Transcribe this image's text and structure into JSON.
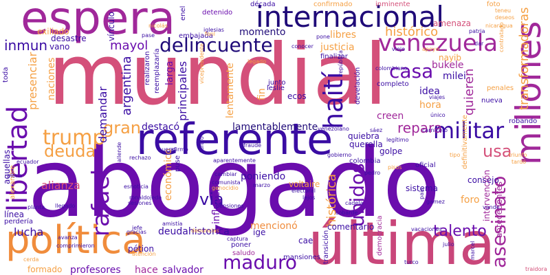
{
  "palette": {
    "dark_purple": "#3a0ca3",
    "navy": "#1f0a78",
    "purple": "#6a0dad",
    "magenta": "#a0289a",
    "pink": "#d4507a",
    "rose": "#c9467a",
    "orange": "#f08c3c",
    "light_orange": "#f5a044",
    "yellow": "#f5c542"
  },
  "words": [
    {
      "text": "mundial",
      "color": "#d4507a"
    },
    {
      "text": "abogado",
      "color": "#6a0dad"
    },
    {
      "text": "referente",
      "color": "#3a0ca3"
    },
    {
      "text": "espera",
      "color": "#a0289a"
    },
    {
      "text": "última",
      "color": "#c9467a"
    },
    {
      "text": "política",
      "color": "#f08c3c"
    },
    {
      "text": "internacional",
      "color": "#1f0a78"
    },
    {
      "text": "venezuela",
      "color": "#a0289a"
    },
    {
      "text": "millones",
      "color": "#a0289a"
    },
    {
      "text": "libertad",
      "color": "#6a0dad"
    },
    {
      "text": "haití",
      "color": "#3a0ca3"
    },
    {
      "text": "militar",
      "color": "#3a0ca3"
    },
    {
      "text": "trump",
      "color": "#f5a044"
    },
    {
      "text": "rafael",
      "color": "#6a0dad"
    },
    {
      "text": "delincuente",
      "color": "#1f0a78"
    },
    {
      "text": "casa",
      "color": "#6a0dad"
    },
    {
      "text": "maduro",
      "color": "#6a0dad"
    },
    {
      "text": "asesinato",
      "color": "#a0289a"
    },
    {
      "text": "unidos",
      "color": "#6a0dad"
    },
    {
      "text": "deuda",
      "color": "#f5a044"
    },
    {
      "text": "usa",
      "color": "#d4507a"
    },
    {
      "text": "gran",
      "color": "#f5a044"
    },
    {
      "text": "via",
      "color": "#3a0ca3"
    },
    {
      "text": "talento",
      "color": "#6a0dad"
    },
    {
      "text": "histórico",
      "color": "#f5a044"
    },
    {
      "text": "histórica",
      "color": "#f5a044"
    },
    {
      "text": "transformadoras",
      "color": "#f5a044"
    },
    {
      "text": "mayol",
      "color": "#6a0dad"
    },
    {
      "text": "inmun",
      "color": "#3a0ca3"
    },
    {
      "text": "lamentablemente",
      "color": "#1f0a78"
    },
    {
      "text": "repara",
      "color": "#a0289a"
    },
    {
      "text": "quieren",
      "color": "#a0289a"
    },
    {
      "text": "alianza",
      "color": "#d4507a"
    },
    {
      "text": "demandar",
      "color": "#3a0ca3"
    },
    {
      "text": "argentina",
      "color": "#3a0ca3"
    },
    {
      "text": "principales",
      "color": "#3a0ca3"
    },
    {
      "text": "presenciar",
      "color": "#f5a044"
    },
    {
      "text": "lucha",
      "color": "#3a0ca3"
    },
    {
      "text": "salvador",
      "color": "#6a0dad"
    },
    {
      "text": "profesores",
      "color": "#6a0dad"
    },
    {
      "text": "formado",
      "color": "#f5a044"
    },
    {
      "text": "hace",
      "color": "#a0289a"
    },
    {
      "text": "deudahistorica",
      "color": "#3a0ca3"
    },
    {
      "text": "mencionó",
      "color": "#f08c3c"
    },
    {
      "text": "influyente",
      "color": "#6a0dad"
    },
    {
      "text": "económico",
      "color": "#f5a044"
    },
    {
      "text": "poniendo",
      "color": "#3a0ca3"
    },
    {
      "text": "destacó",
      "color": "#3a0ca3"
    },
    {
      "text": "justicia",
      "color": "#f5a044"
    },
    {
      "text": "libres",
      "color": "#f5a044"
    },
    {
      "text": "momento",
      "color": "#1f0a78"
    },
    {
      "text": "nayib",
      "color": "#f5a044"
    },
    {
      "text": "bukele",
      "color": "#a0289a"
    },
    {
      "text": "milei",
      "color": "#3a0ca3"
    },
    {
      "text": "idea",
      "color": "#3a0ca3"
    },
    {
      "text": "hora",
      "color": "#f5a044"
    },
    {
      "text": "fin",
      "color": "#f5a044"
    },
    {
      "text": "larga",
      "color": "#6a0dad"
    },
    {
      "text": "foro",
      "color": "#f5a044"
    },
    {
      "text": "creen",
      "color": "#a0289a"
    },
    {
      "text": "quiebra",
      "color": "#3a0ca3"
    },
    {
      "text": "querella",
      "color": "#3a0ca3"
    },
    {
      "text": "golpe",
      "color": "#3a0ca3"
    },
    {
      "text": "colombia",
      "color": "#3a0ca3"
    },
    {
      "text": "consejo",
      "color": "#3a0ca3"
    },
    {
      "text": "sistema",
      "color": "#3a0ca3"
    },
    {
      "text": "comentario",
      "color": "#3a0ca3"
    },
    {
      "text": "lentamente",
      "color": "#f5a044"
    },
    {
      "text": "vano",
      "color": "#3a0ca3"
    },
    {
      "text": "desastre",
      "color": "#3a0ca3"
    },
    {
      "text": "exiliado",
      "color": "#f5a044"
    },
    {
      "text": "vínculo",
      "color": "#3a0ca3"
    },
    {
      "text": "enel",
      "color": "#3a0ca3"
    },
    {
      "text": "detenido",
      "color": "#6a0dad"
    },
    {
      "text": "confirmado",
      "color": "#f5a044"
    },
    {
      "text": "década",
      "color": "#3a0ca3"
    },
    {
      "text": "inminente",
      "color": "#d4507a"
    },
    {
      "text": "amenaza",
      "color": "#d4507a"
    },
    {
      "text": "foto",
      "color": "#f5a044"
    },
    {
      "text": "cae",
      "color": "#3a0ca3"
    },
    {
      "text": "ige",
      "color": "#3a0ca3"
    },
    {
      "text": "saludo",
      "color": "#a0289a"
    },
    {
      "text": "mansiones",
      "color": "#3a0ca3"
    },
    {
      "text": "poner",
      "color": "#3a0ca3"
    },
    {
      "text": "transición",
      "color": "#3a0ca3"
    },
    {
      "text": "democracia",
      "color": "#a0289a"
    },
    {
      "text": "intervención",
      "color": "#a0289a"
    },
    {
      "text": "antecedentes",
      "color": "#a0289a"
    },
    {
      "text": "definitivamente",
      "color": "#f5a044"
    },
    {
      "text": "oficial",
      "color": "#3a0ca3"
    },
    {
      "text": "robando",
      "color": "#3a0ca3"
    },
    {
      "text": "nueva",
      "color": "#3a0ca3"
    },
    {
      "text": "completo",
      "color": "#3a0ca3"
    },
    {
      "text": "develación",
      "color": "#3a0ca3"
    },
    {
      "text": "ecos",
      "color": "#3a0ca3"
    },
    {
      "text": "junto",
      "color": "#3a0ca3"
    },
    {
      "text": "leslie",
      "color": "#3a0ca3"
    },
    {
      "text": "reemplazaría",
      "color": "#3a0ca3"
    },
    {
      "text": "realizaron",
      "color": "#3a0ca3"
    },
    {
      "text": "línea",
      "color": "#3a0ca3"
    },
    {
      "text": "perdería",
      "color": "#3a0ca3"
    },
    {
      "text": "aquellas",
      "color": "#3a0ca3"
    },
    {
      "text": "alexandre",
      "color": "#f5a044"
    },
    {
      "text": "toda",
      "color": "#3a0ca3"
    },
    {
      "text": "naciones",
      "color": "#f5a044"
    },
    {
      "text": "pétion",
      "color": "#3a0ca3"
    },
    {
      "text": "atención",
      "color": "#f5a044"
    },
    {
      "text": "gracias",
      "color": "#3a0ca3"
    },
    {
      "text": "pone",
      "color": "#3a0ca3"
    },
    {
      "text": "voltaire",
      "color": "#f5a044"
    },
    {
      "text": "finalizar",
      "color": "#3a0ca3"
    },
    {
      "text": "penales",
      "color": "#f5a044"
    },
    {
      "text": "embajada",
      "color": "#3a0ca3"
    },
    {
      "text": "iglesias",
      "color": "#3a0ca3"
    },
    {
      "text": "pase",
      "color": "#3a0ca3"
    },
    {
      "text": "nicolás",
      "color": "#f5a044"
    },
    {
      "text": "fonl",
      "color": "#f5a044"
    },
    {
      "text": "patria",
      "color": "#3a0ca3"
    },
    {
      "text": "conocer",
      "color": "#3a0ca3"
    },
    {
      "text": "dar",
      "color": "#3a0ca3"
    },
    {
      "text": "apoyo",
      "color": "#f5a044"
    },
    {
      "text": "viajes",
      "color": "#3a0ca3"
    },
    {
      "text": "único",
      "color": "#3a0ca3"
    },
    {
      "text": "teneu",
      "color": "#f5a044"
    },
    {
      "text": "deseos",
      "color": "#f5a044"
    },
    {
      "text": "nicaragua",
      "color": "#f5a044"
    },
    {
      "text": "contratado",
      "color": "#f5a044"
    },
    {
      "text": "legado",
      "color": "#f5a044"
    },
    {
      "text": "colombiano",
      "color": "#3a0ca3"
    },
    {
      "text": "república",
      "color": "#3a0ca3"
    },
    {
      "text": "venezolano",
      "color": "#3a0ca3"
    },
    {
      "text": "sáez",
      "color": "#3a0ca3"
    },
    {
      "text": "legítimo",
      "color": "#3a0ca3"
    },
    {
      "text": "vicepresidente",
      "color": "#f5a044"
    },
    {
      "text": "carnicero",
      "color": "#3a0ca3"
    },
    {
      "text": "fraude",
      "color": "#3a0ca3"
    },
    {
      "text": "afirmó",
      "color": "#3a0ca3"
    },
    {
      "text": "bueno",
      "color": "#3a0ca3"
    },
    {
      "text": "turbio",
      "color": "#3a0ca3"
    },
    {
      "text": "aparentemente",
      "color": "#3a0ca3"
    },
    {
      "text": "rechazo",
      "color": "#3a0ca3"
    },
    {
      "text": "comunista",
      "color": "#3a0ca3"
    },
    {
      "text": "cambiar",
      "color": "#3a0ca3"
    },
    {
      "text": "genocidio",
      "color": "#f5a044"
    },
    {
      "text": "pensiones",
      "color": "#3a0ca3"
    },
    {
      "text": "sesiones",
      "color": "#3a0ca3"
    },
    {
      "text": "ronaldojeda",
      "color": "#3a0ca3"
    },
    {
      "text": "esnoticia",
      "color": "#3a0ca3"
    },
    {
      "text": "llegado",
      "color": "#3a0ca3"
    },
    {
      "text": "marzo",
      "color": "#3a0ca3"
    },
    {
      "text": "electoral",
      "color": "#3a0ca3"
    },
    {
      "text": "lejos",
      "color": "#3a0ca3"
    },
    {
      "text": "gamez",
      "color": "#3a0ca3"
    },
    {
      "text": "cadela",
      "color": "#3a0ca3"
    },
    {
      "text": "cobarde",
      "color": "#3a0ca3"
    },
    {
      "text": "vacaciones",
      "color": "#3a0ca3"
    },
    {
      "text": "julio",
      "color": "#3a0ca3"
    },
    {
      "text": "turco",
      "color": "#3a0ca3"
    },
    {
      "text": "marcel",
      "color": "#3a0ca3"
    },
    {
      "text": "traidora",
      "color": "#d4507a"
    },
    {
      "text": "jefe",
      "color": "#3a0ca3"
    },
    {
      "text": "amistía",
      "color": "#3a0ca3"
    },
    {
      "text": "captura",
      "color": "#3a0ca3"
    },
    {
      "text": "comprimieron",
      "color": "#3a0ca3"
    },
    {
      "text": "avanza",
      "color": "#3a0ca3"
    },
    {
      "text": "denuncias",
      "color": "#f5a044"
    },
    {
      "text": "puse",
      "color": "#3a0ca3"
    },
    {
      "text": "allende",
      "color": "#3a0ca3"
    },
    {
      "text": "plena",
      "color": "#3a0ca3"
    },
    {
      "text": "planta",
      "color": "#3a0ca3"
    },
    {
      "text": "cerda",
      "color": "#f5a044"
    },
    {
      "text": "vande",
      "color": "#3a0ca3"
    },
    {
      "text": "país",
      "color": "#3a0ca3"
    },
    {
      "text": "pisos",
      "color": "#f5a044"
    },
    {
      "text": "ecuador",
      "color": "#3a0ca3"
    },
    {
      "text": "tipo",
      "color": "#f5a044"
    },
    {
      "text": "viejo",
      "color": "#3a0ca3"
    },
    {
      "text": "triunfo",
      "color": "#f5a044"
    },
    {
      "text": "pedro",
      "color": "#3a0ca3"
    },
    {
      "text": "gobierno",
      "color": "#3a0ca3"
    },
    {
      "text": "tardó",
      "color": "#f5a044"
    }
  ]
}
